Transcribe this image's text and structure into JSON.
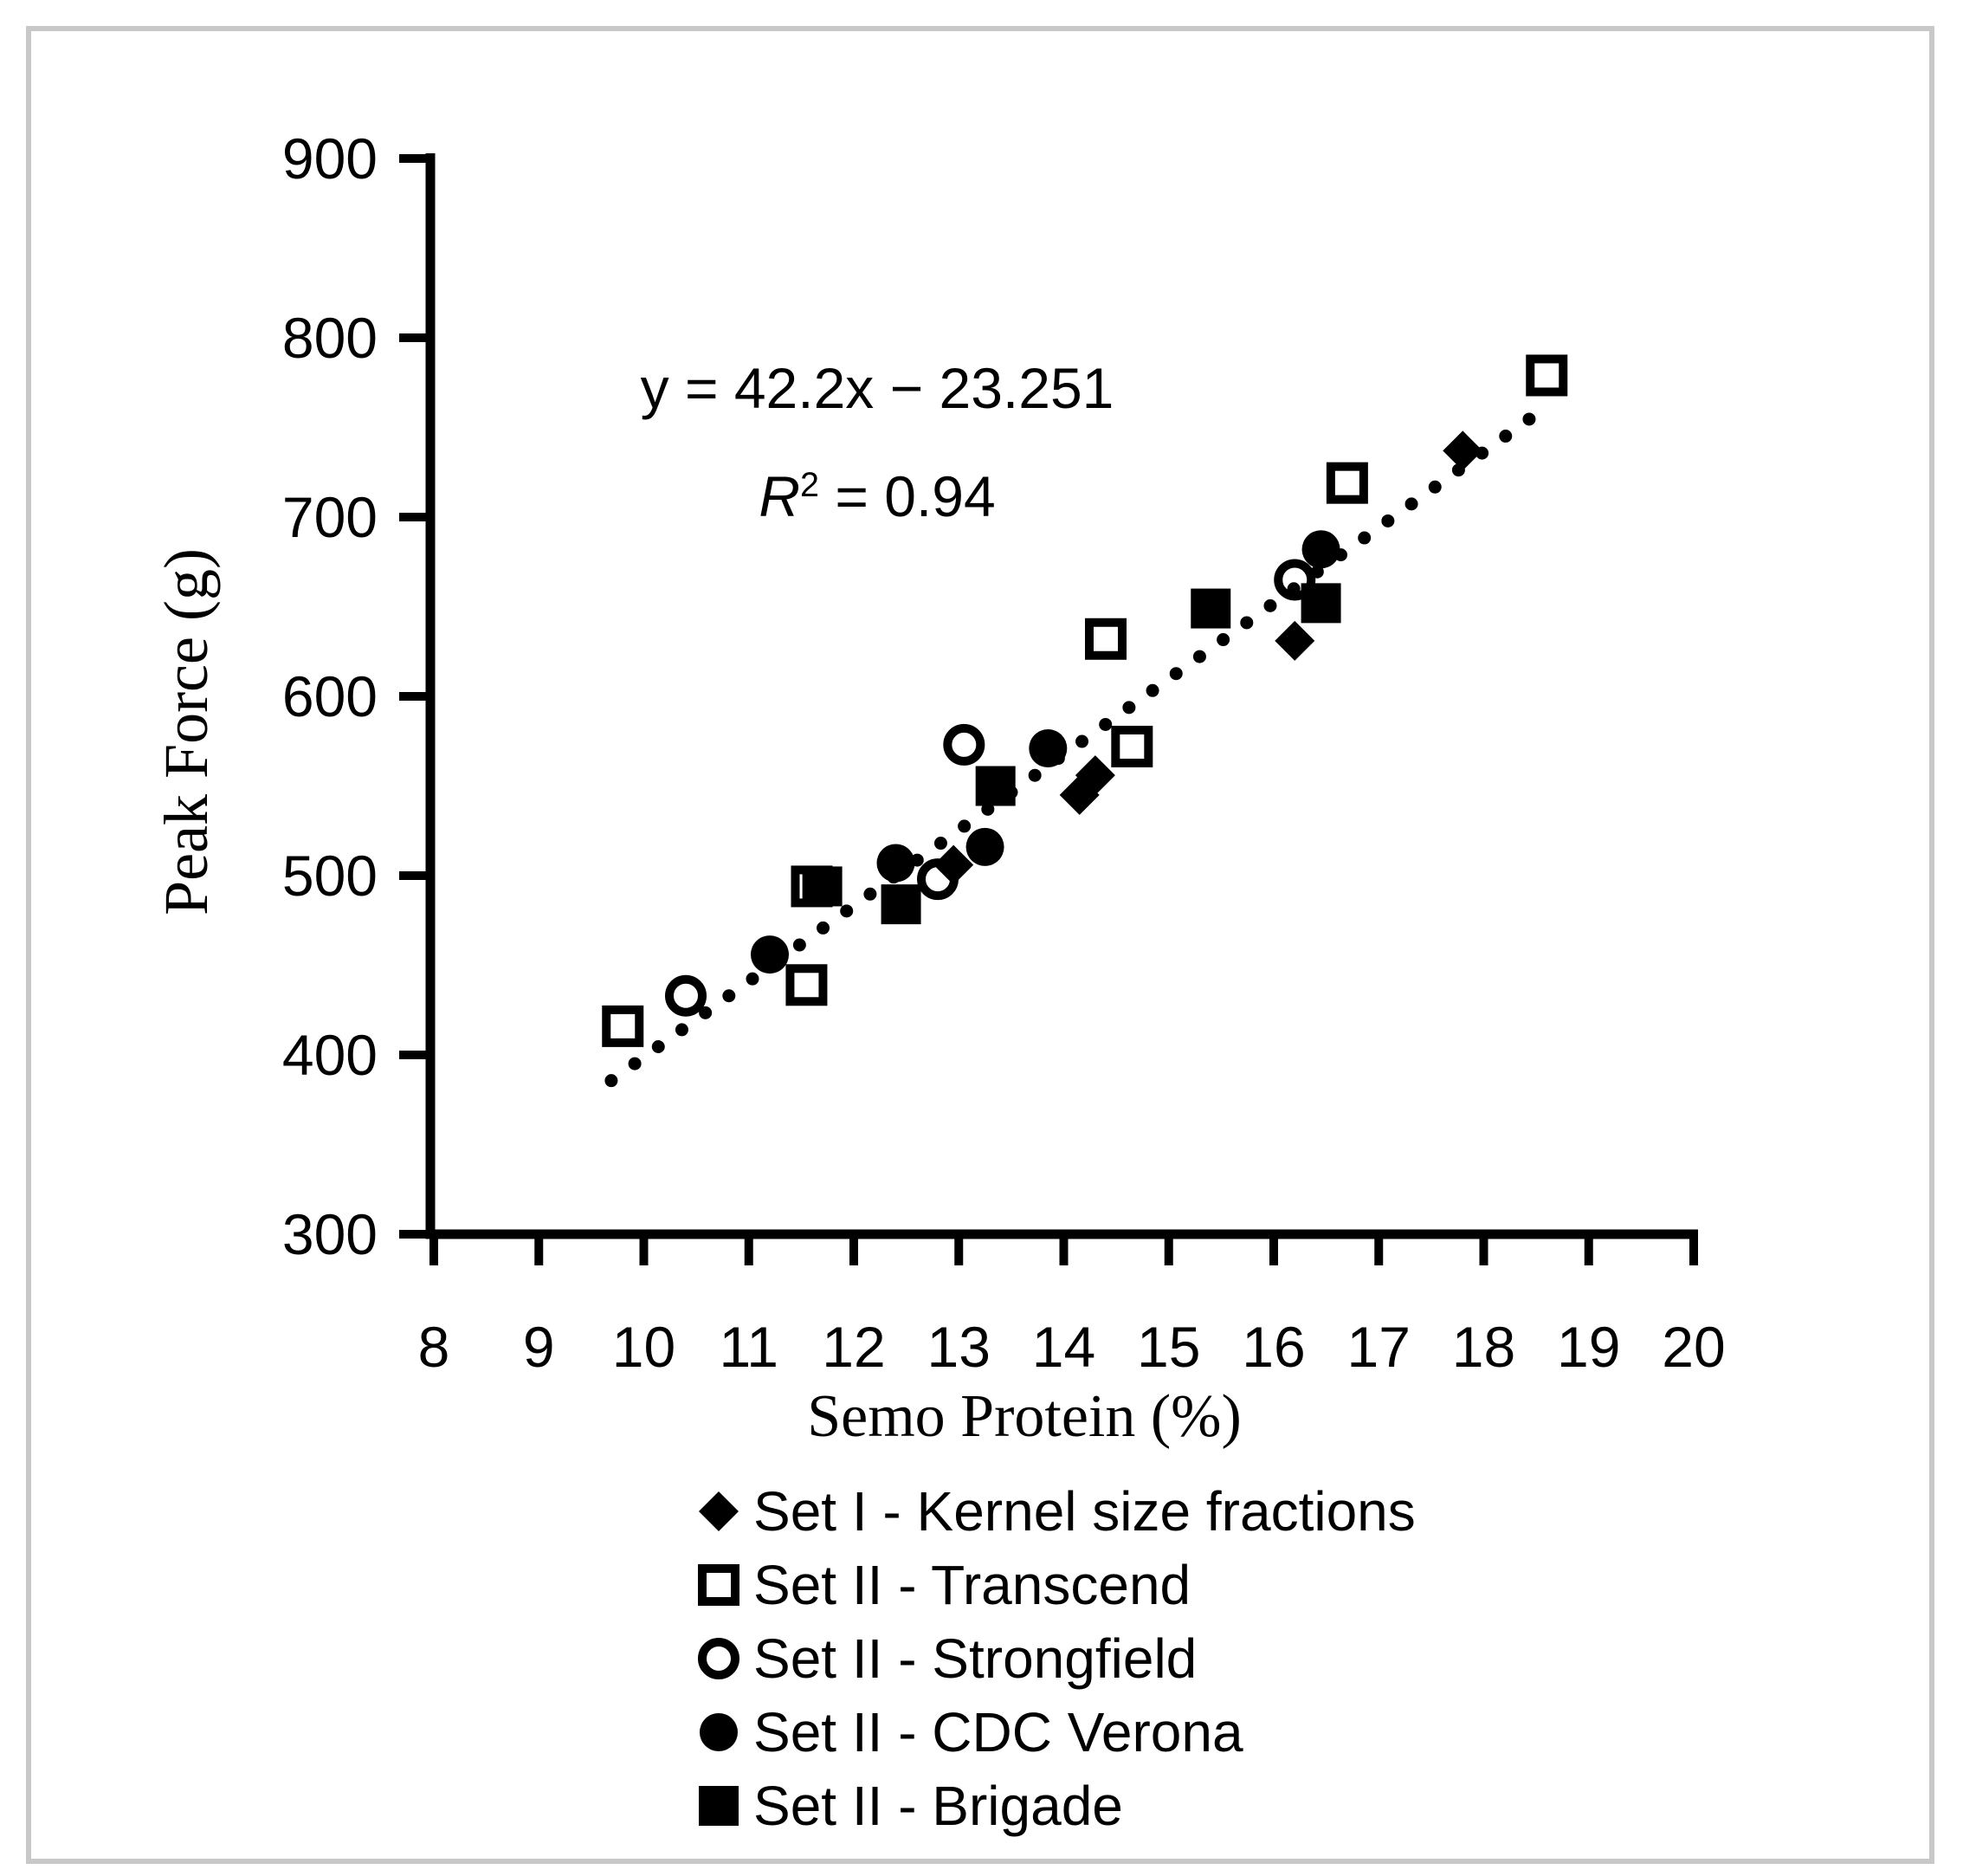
{
  "figure": {
    "background": "#ffffff",
    "border_color": "#c8c8c8",
    "ink_color": "#000000"
  },
  "chart_data": {
    "type": "scatter",
    "title": "",
    "xlabel": "Semo Protein (%)",
    "ylabel": "Peak Force (g)",
    "xlim": [
      8,
      20
    ],
    "ylim": [
      300,
      900
    ],
    "x_ticks": [
      8,
      9,
      10,
      11,
      12,
      13,
      14,
      15,
      16,
      17,
      18,
      19,
      20
    ],
    "y_ticks": [
      300,
      400,
      500,
      600,
      700,
      800,
      900
    ],
    "grid": false,
    "legend_position": "bottom-left",
    "annotation": {
      "line1": "y = 42.2x − 23.251",
      "r_symbol": "R",
      "r_sup": "2",
      "r_rest": " = 0.94"
    },
    "trendline": {
      "style": "dotted",
      "equation": "y = 42.2x − 23.251",
      "slope": 42.2,
      "intercept": -23.251,
      "r_squared": 0.94,
      "x_start": 9.69,
      "x_end": 18.55
    },
    "series": [
      {
        "name": "Set I - Kernel size fractions",
        "marker": "filled-diamond",
        "points": [
          [
            12.95,
            506
          ],
          [
            14.15,
            545
          ],
          [
            14.3,
            556
          ],
          [
            16.2,
            631
          ],
          [
            17.8,
            737
          ]
        ]
      },
      {
        "name": "Set II - Transcend",
        "marker": "open-square",
        "points": [
          [
            9.8,
            416
          ],
          [
            11.55,
            439
          ],
          [
            11.6,
            494
          ],
          [
            14.4,
            632
          ],
          [
            14.65,
            572
          ],
          [
            16.7,
            719
          ],
          [
            18.6,
            779
          ]
        ]
      },
      {
        "name": "Set II - Strongfield",
        "marker": "open-circle",
        "points": [
          [
            10.4,
            433
          ],
          [
            12.8,
            498
          ],
          [
            13.05,
            573
          ],
          [
            16.2,
            665
          ]
        ]
      },
      {
        "name": "Set II - CDC Verona",
        "marker": "filled-circle",
        "points": [
          [
            11.2,
            456
          ],
          [
            12.4,
            507
          ],
          [
            13.25,
            516
          ],
          [
            13.85,
            571
          ],
          [
            16.45,
            682
          ]
        ]
      },
      {
        "name": "Set II - Brigade",
        "marker": "filled-square",
        "points": [
          [
            11.7,
            494
          ],
          [
            12.45,
            484
          ],
          [
            13.35,
            550
          ],
          [
            15.4,
            649
          ],
          [
            16.45,
            652
          ]
        ]
      }
    ]
  }
}
